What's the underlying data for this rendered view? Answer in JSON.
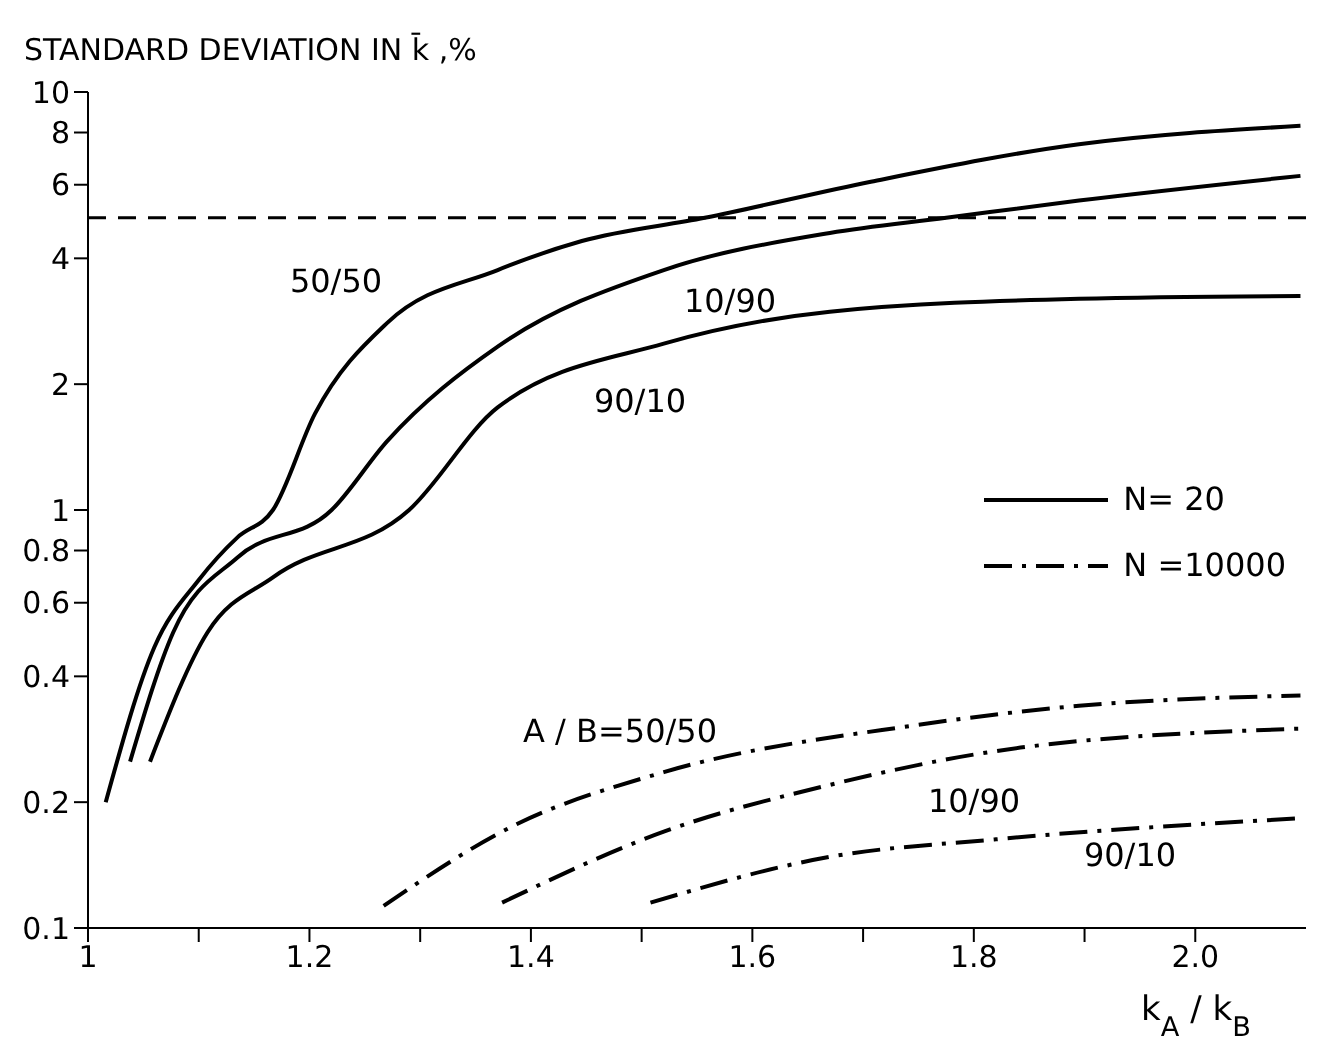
{
  "chart_data": {
    "type": "line",
    "ylabel": "STANDARD DEVIATION IN k̄ ,%",
    "xlabel": "k$_{A}$ / k$_{B}$",
    "log": "y",
    "grid": false,
    "legend": "right",
    "marker": "none",
    "xlim": [
      1,
      2.1
    ],
    "ylim": [
      0.1,
      10
    ],
    "xticks": [
      1,
      {
        "value": 1.1,
        "label": null
      },
      1.2,
      {
        "value": 1.3,
        "label": null
      },
      1.4,
      {
        "value": 1.5,
        "label": null
      },
      1.6,
      {
        "value": 1.7,
        "label": null
      },
      1.8,
      {
        "value": 1.9,
        "label": null
      },
      {
        "value": 2,
        "label": "2.0"
      }
    ],
    "yticks": [
      0.1,
      0.2,
      0.4,
      0.6,
      0.8,
      1,
      2,
      4,
      6,
      8,
      10
    ],
    "series": [
      {
        "name": "N= 20",
        "color": "#000000",
        "line_style": "solid",
        "x": [
          1.016,
          1.06,
          1.1,
          1.135,
          1.167,
          1.205,
          1.27,
          1.37,
          1.446,
          1.557,
          1.707,
          1.895,
          2.095
        ],
        "values": [
          0.2,
          0.47,
          0.68,
          0.86,
          1.0,
          1.7,
          2.8,
          3.75,
          4.4,
          5.0,
          6.1,
          7.5,
          8.3
        ]
      },
      {
        "color": "#000000",
        "line_style": "solid",
        "x": [
          1.038,
          1.077,
          1.135,
          1.22,
          1.27,
          1.37,
          1.52,
          1.67,
          1.775,
          1.895,
          2.095
        ],
        "values": [
          0.25,
          0.51,
          0.77,
          1.0,
          1.46,
          2.46,
          3.75,
          4.6,
          5.0,
          5.5,
          6.3
        ]
      },
      {
        "color": "#000000",
        "line_style": "solid",
        "x": [
          1.056,
          1.108,
          1.167,
          1.29,
          1.37,
          1.52,
          1.67,
          1.895,
          2.095
        ],
        "values": [
          0.25,
          0.51,
          0.69,
          1.0,
          1.76,
          2.5,
          2.98,
          3.2,
          3.25
        ]
      },
      {
        "name": "N =10000",
        "color": "#000000",
        "line_style": "dashdot",
        "x": [
          1.267,
          1.385,
          1.52,
          1.745,
          1.895,
          2.095
        ],
        "values": [
          0.113,
          0.176,
          0.236,
          0.305,
          0.34,
          0.36
        ]
      },
      {
        "color": "#000000",
        "line_style": "dashdot",
        "x": [
          1.374,
          1.52,
          1.67,
          1.82,
          2.095
        ],
        "values": [
          0.115,
          0.17,
          0.22,
          0.265,
          0.3
        ]
      },
      {
        "color": "#000000",
        "line_style": "dashdot",
        "x": [
          1.508,
          1.67,
          1.82,
          2.095
        ],
        "values": [
          0.115,
          0.148,
          0.163,
          0.183
        ]
      }
    ],
    "ref_lines": [
      {
        "axis": "y",
        "value": 5,
        "color": "#000000",
        "line_style": "dashed"
      }
    ],
    "annotations": [
      "50/50",
      "10/90",
      "90/10",
      "A / B=50/50",
      "10/90",
      "90/10"
    ]
  }
}
